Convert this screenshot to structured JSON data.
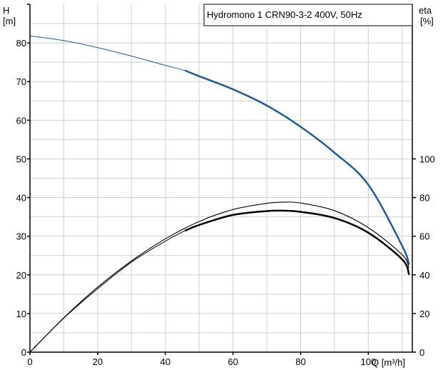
{
  "chart_data": {
    "type": "line",
    "title": "Hydromono 1 CRN90-3-2 400V, 50Hz",
    "left_axis_label_line1": "H",
    "left_axis_label_line2": "[m]",
    "right_axis_label_line1": "eta",
    "right_axis_label_line2": "[%]",
    "x_axis_label": "Q [m³/h]",
    "xlim": [
      0,
      113
    ],
    "ylim_left": [
      0,
      90
    ],
    "ylim_right": [
      0,
      180
    ],
    "x_ticks": [
      0,
      20,
      40,
      60,
      80,
      100
    ],
    "y_ticks_left": [
      0,
      10,
      20,
      30,
      40,
      50,
      60,
      70,
      80
    ],
    "y_ticks_right": [
      0,
      20,
      40,
      60,
      80,
      100
    ],
    "grid": true,
    "colors": {
      "head": "#1f5a96",
      "efficiency": "#000000",
      "grid": "#cfcfcf"
    },
    "series": [
      {
        "axis": "left",
        "color": "#1f5a96",
        "x": [
          0,
          10,
          20,
          30,
          40,
          46,
          50,
          60,
          70,
          80,
          90,
          100,
          110,
          112
        ],
        "y": [
          81.8,
          80.6,
          78.8,
          76.6,
          74.2,
          72.8,
          71.4,
          68.0,
          63.8,
          58.3,
          51.6,
          43.3,
          27.5,
          22.8
        ]
      },
      {
        "axis": "left",
        "color": "#000000",
        "x": [
          0,
          10,
          20,
          30,
          40,
          50,
          60,
          70,
          75,
          80,
          90,
          100,
          110,
          112
        ],
        "y": [
          0,
          8.9,
          16.8,
          23.6,
          29.3,
          33.8,
          36.9,
          38.5,
          38.8,
          38.6,
          36.6,
          32.2,
          25.2,
          21.8
        ]
      },
      {
        "axis": "right",
        "color": "#000000",
        "x": [
          0,
          10,
          20,
          30,
          40,
          46,
          50,
          60,
          70,
          75,
          80,
          90,
          100,
          110,
          112
        ],
        "y": [
          0,
          17.6,
          32.8,
          46.6,
          57.4,
          63.0,
          65.8,
          71.0,
          73.0,
          73.2,
          72.6,
          69.4,
          61.8,
          48.0,
          40.4
        ]
      }
    ]
  }
}
